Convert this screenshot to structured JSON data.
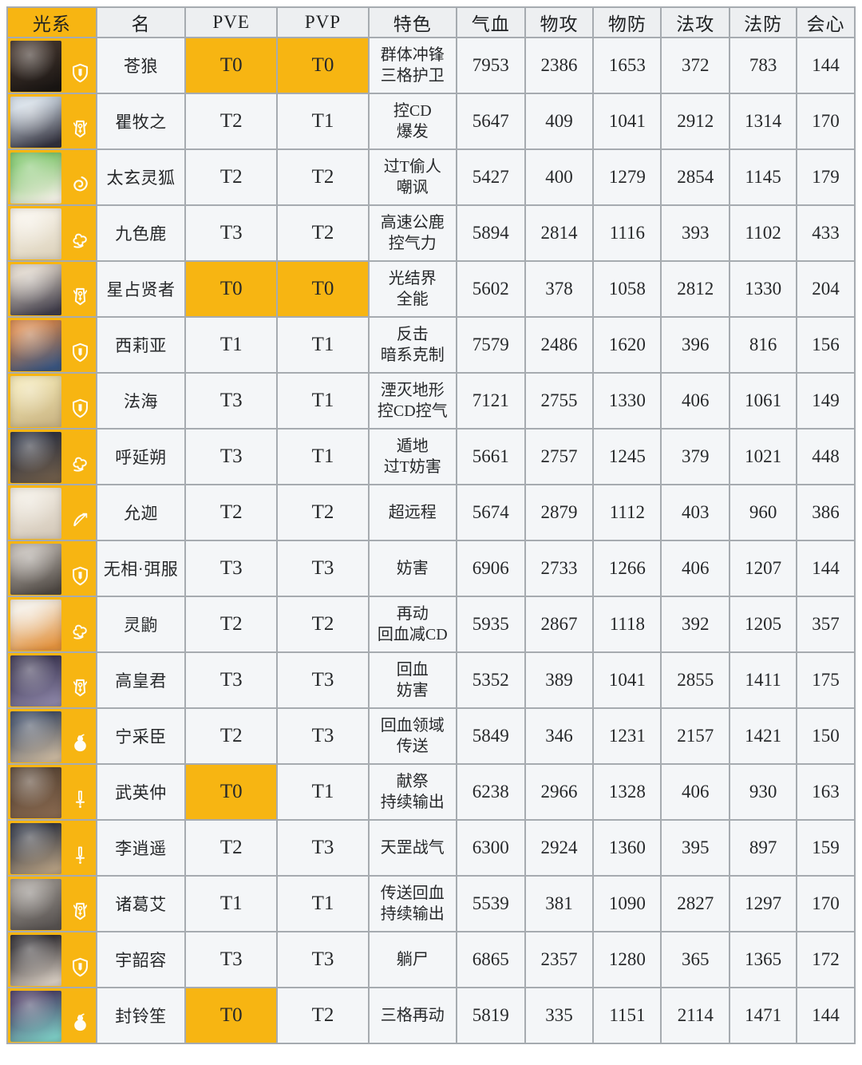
{
  "chart_data": {
    "type": "table",
    "colors": {
      "accent_orange": "#F7B512",
      "header_bg": "#EDEFF1",
      "cell_bg": "#F4F6F8",
      "border_gray": "#A6ABB0"
    },
    "highlight_tier": "T0",
    "columns": [
      {
        "key": "element",
        "label": "光系"
      },
      {
        "key": "name",
        "label": "名"
      },
      {
        "key": "pve",
        "label": "PVE"
      },
      {
        "key": "pvp",
        "label": "PVP"
      },
      {
        "key": "trait",
        "label": "特色"
      },
      {
        "key": "hp",
        "label": "气血"
      },
      {
        "key": "patk",
        "label": "物攻"
      },
      {
        "key": "pdef",
        "label": "物防"
      },
      {
        "key": "matk",
        "label": "法攻"
      },
      {
        "key": "mdef",
        "label": "法防"
      },
      {
        "key": "crit",
        "label": "会心"
      }
    ],
    "rows": [
      {
        "name": "苍狼",
        "role_icon": "shield-icon",
        "pve": "T0",
        "pvp": "T0",
        "trait_lines": [
          "群体冲锋",
          "三格护卫"
        ],
        "stats": {
          "hp": 7953,
          "patk": 2386,
          "pdef": 1653,
          "matk": 372,
          "mdef": 783,
          "crit": 144
        },
        "avatar_colors": [
          "#44362e",
          "#191513"
        ]
      },
      {
        "name": "瞿牧之",
        "role_icon": "scepter-icon",
        "pve": "T2",
        "pvp": "T1",
        "trait_lines": [
          "控CD",
          "爆发"
        ],
        "stats": {
          "hp": 5647,
          "patk": 409,
          "pdef": 1041,
          "matk": 2912,
          "mdef": 1314,
          "crit": 170
        },
        "avatar_colors": [
          "#cfd9e3",
          "#31303c"
        ]
      },
      {
        "name": "太玄灵狐",
        "role_icon": "swirl-icon",
        "pve": "T2",
        "pvp": "T2",
        "trait_lines": [
          "过T偷人",
          "嘲讽"
        ],
        "stats": {
          "hp": 5427,
          "patk": 400,
          "pdef": 1279,
          "matk": 2854,
          "mdef": 1145,
          "crit": 179
        },
        "avatar_colors": [
          "#7cc468",
          "#f1eee4"
        ]
      },
      {
        "name": "九色鹿",
        "role_icon": "cloud-icon",
        "pve": "T3",
        "pvp": "T2",
        "trait_lines": [
          "高速公鹿",
          "控气力"
        ],
        "stats": {
          "hp": 5894,
          "patk": 2814,
          "pdef": 1116,
          "matk": 393,
          "mdef": 1102,
          "crit": 433
        },
        "avatar_colors": [
          "#f6f1e7",
          "#ddd3bd"
        ]
      },
      {
        "name": "星占贤者",
        "role_icon": "scepter-icon",
        "pve": "T0",
        "pvp": "T0",
        "trait_lines": [
          "光结界",
          "全能"
        ],
        "stats": {
          "hp": 5602,
          "patk": 378,
          "pdef": 1058,
          "matk": 2812,
          "mdef": 1330,
          "crit": 204
        },
        "avatar_colors": [
          "#d8cec2",
          "#3f3c49"
        ]
      },
      {
        "name": "西莉亚",
        "role_icon": "shield-icon",
        "pve": "T1",
        "pvp": "T1",
        "trait_lines": [
          "反击",
          "暗系克制"
        ],
        "stats": {
          "hp": 7579,
          "patk": 2486,
          "pdef": 1620,
          "matk": 396,
          "mdef": 816,
          "crit": 156
        },
        "avatar_colors": [
          "#d4854b",
          "#3a557f"
        ]
      },
      {
        "name": "法海",
        "role_icon": "shield-icon",
        "pve": "T3",
        "pvp": "T1",
        "trait_lines": [
          "湮灭地形",
          "控CD控气"
        ],
        "stats": {
          "hp": 7121,
          "patk": 2755,
          "pdef": 1330,
          "matk": 406,
          "mdef": 1061,
          "crit": 149
        },
        "avatar_colors": [
          "#efe2ae",
          "#cbb685"
        ]
      },
      {
        "name": "呼延朔",
        "role_icon": "cloud-icon",
        "pve": "T3",
        "pvp": "T1",
        "trait_lines": [
          "遁地",
          "过T妨害"
        ],
        "stats": {
          "hp": 5661,
          "patk": 2757,
          "pdef": 1245,
          "matk": 379,
          "mdef": 1021,
          "crit": 448
        },
        "avatar_colors": [
          "#2c3140",
          "#6e5c49"
        ]
      },
      {
        "name": "允迦",
        "role_icon": "bow-icon",
        "pve": "T2",
        "pvp": "T2",
        "trait_lines": [
          "超远程"
        ],
        "stats": {
          "hp": 5674,
          "patk": 2879,
          "pdef": 1112,
          "matk": 403,
          "mdef": 960,
          "crit": 386
        },
        "avatar_colors": [
          "#efe9de",
          "#d4c9ba"
        ]
      },
      {
        "name": "无相·弭服",
        "role_icon": "shield-icon",
        "pve": "T3",
        "pvp": "T3",
        "trait_lines": [
          "妨害"
        ],
        "stats": {
          "hp": 6906,
          "patk": 2733,
          "pdef": 1266,
          "matk": 406,
          "mdef": 1207,
          "crit": 144
        },
        "avatar_colors": [
          "#b5aea7",
          "#4d4742"
        ]
      },
      {
        "name": "灵鼩",
        "role_icon": "cloud-icon",
        "pve": "T2",
        "pvp": "T2",
        "trait_lines": [
          "再动",
          "回血减CD"
        ],
        "stats": {
          "hp": 5935,
          "patk": 2867,
          "pdef": 1118,
          "matk": 392,
          "mdef": 1205,
          "crit": 357
        },
        "avatar_colors": [
          "#f3ebdf",
          "#e2923e"
        ]
      },
      {
        "name": "高皇君",
        "role_icon": "scepter-icon",
        "pve": "T3",
        "pvp": "T3",
        "trait_lines": [
          "回血",
          "妨害"
        ],
        "stats": {
          "hp": 5352,
          "patk": 389,
          "pdef": 1041,
          "matk": 2855,
          "mdef": 1411,
          "crit": 175
        },
        "avatar_colors": [
          "#3a3450",
          "#8b84a6"
        ]
      },
      {
        "name": "宁采臣",
        "role_icon": "gourd-icon",
        "pve": "T2",
        "pvp": "T3",
        "trait_lines": [
          "回血领域",
          "传送"
        ],
        "stats": {
          "hp": 5849,
          "patk": 346,
          "pdef": 1231,
          "matk": 2157,
          "mdef": 1421,
          "crit": 150
        },
        "avatar_colors": [
          "#3c4961",
          "#c9b79e"
        ]
      },
      {
        "name": "武英仲",
        "role_icon": "sword-icon",
        "pve": "T0",
        "pvp": "T1",
        "trait_lines": [
          "献祭",
          "持续输出"
        ],
        "stats": {
          "hp": 6238,
          "patk": 2966,
          "pdef": 1328,
          "matk": 406,
          "mdef": 930,
          "crit": 163
        },
        "avatar_colors": [
          "#594535",
          "#86674e"
        ]
      },
      {
        "name": "李逍遥",
        "role_icon": "sword-icon",
        "pve": "T2",
        "pvp": "T3",
        "trait_lines": [
          "天罡战气"
        ],
        "stats": {
          "hp": 6300,
          "patk": 2924,
          "pdef": 1360,
          "matk": 395,
          "mdef": 897,
          "crit": 159
        },
        "avatar_colors": [
          "#2e3340",
          "#b49e81"
        ]
      },
      {
        "name": "诸葛艾",
        "role_icon": "scepter-icon",
        "pve": "T1",
        "pvp": "T1",
        "trait_lines": [
          "传送回血",
          "持续输出"
        ],
        "stats": {
          "hp": 5539,
          "patk": 381,
          "pdef": 1090,
          "matk": 2827,
          "mdef": 1297,
          "crit": 170
        },
        "avatar_colors": [
          "#98928c",
          "#575250"
        ]
      },
      {
        "name": "宇韶容",
        "role_icon": "shield-icon",
        "pve": "T3",
        "pvp": "T3",
        "trait_lines": [
          "躺尸"
        ],
        "stats": {
          "hp": 6865,
          "patk": 2357,
          "pdef": 1280,
          "matk": 365,
          "mdef": 1365,
          "crit": 172
        },
        "avatar_colors": [
          "#2c292d",
          "#d6ccc1"
        ]
      },
      {
        "name": "封铃笙",
        "role_icon": "gourd-icon",
        "pve": "T0",
        "pvp": "T2",
        "trait_lines": [
          "三格再动"
        ],
        "stats": {
          "hp": 5819,
          "patk": 335,
          "pdef": 1151,
          "matk": 2114,
          "mdef": 1471,
          "crit": 144
        },
        "avatar_colors": [
          "#493c64",
          "#7cccc4"
        ]
      }
    ]
  }
}
